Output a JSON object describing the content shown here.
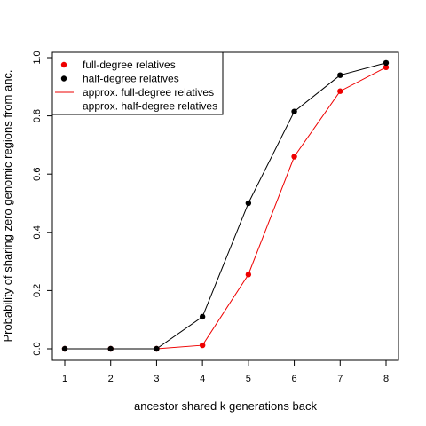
{
  "chart_data": {
    "type": "line",
    "title": "",
    "xlabel": "ancestor shared k generations back",
    "ylabel": "Probability of sharing zero genomic regions from anc.",
    "x": [
      1,
      2,
      3,
      4,
      5,
      6,
      7,
      8
    ],
    "xlim": [
      1,
      8
    ],
    "ylim": [
      0,
      1
    ],
    "xticks": [
      "1",
      "2",
      "3",
      "4",
      "5",
      "6",
      "7",
      "8"
    ],
    "yticks": [
      "0.0",
      "0.2",
      "0.4",
      "0.6",
      "0.8",
      "1.0"
    ],
    "grid": false,
    "legend_position": "top-left",
    "series": [
      {
        "name": "full-degree relatives",
        "kind": "points",
        "color": "#ee0000",
        "values": [
          0,
          0,
          0,
          0.012,
          0.255,
          0.66,
          0.885,
          0.967
        ]
      },
      {
        "name": "half-degree relatives",
        "kind": "points",
        "color": "#000000",
        "values": [
          0,
          0,
          0,
          0.11,
          0.5,
          0.815,
          0.94,
          0.982
        ]
      },
      {
        "name": "approx. full-degree relatives",
        "kind": "line",
        "color": "#ee0000",
        "values": [
          0,
          0,
          0,
          0.012,
          0.255,
          0.66,
          0.885,
          0.967
        ]
      },
      {
        "name": "approx. half-degree relatives",
        "kind": "line",
        "color": "#000000",
        "values": [
          0,
          0,
          0,
          0.11,
          0.5,
          0.815,
          0.94,
          0.982
        ]
      }
    ]
  }
}
